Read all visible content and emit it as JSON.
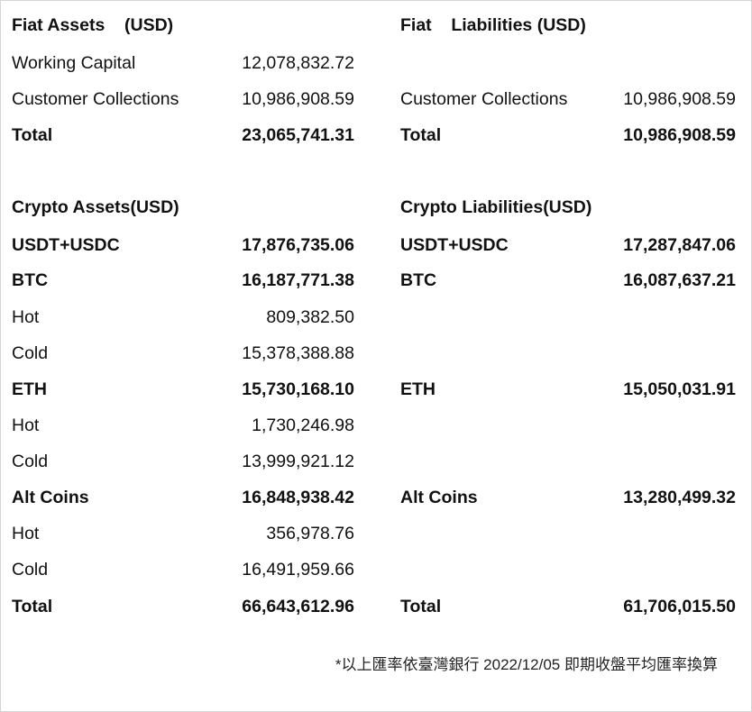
{
  "fiat_assets": {
    "title": "Fiat Assets    (USD)",
    "rows": [
      {
        "label": "Working Capital",
        "value": "12,078,832.72"
      },
      {
        "label": "Customer Collections",
        "value": "10,986,908.59"
      }
    ],
    "total": {
      "label": "Total",
      "value": "23,065,741.31"
    }
  },
  "fiat_liabilities": {
    "title": "Fiat    Liabilities (USD)",
    "rows": [
      {
        "label": "Customer Collections",
        "value": "10,986,908.59"
      }
    ],
    "total": {
      "label": "Total",
      "value": "10,986,908.59"
    }
  },
  "crypto_assets": {
    "title": "Crypto Assets(USD)",
    "rows": [
      {
        "label": "USDT+USDC",
        "value": "17,876,735.06"
      },
      {
        "label": "BTC",
        "value": "16,187,771.38"
      },
      {
        "label": "Hot",
        "value": "809,382.50"
      },
      {
        "label": "Cold",
        "value": "15,378,388.88"
      },
      {
        "label": "ETH",
        "value": "15,730,168.10"
      },
      {
        "label": "Hot",
        "value": "1,730,246.98"
      },
      {
        "label": "Cold",
        "value": "13,999,921.12"
      },
      {
        "label": "Alt Coins",
        "value": "16,848,938.42"
      },
      {
        "label": "Hot",
        "value": "356,978.76"
      },
      {
        "label": "Cold",
        "value": "16,491,959.66"
      }
    ],
    "total": {
      "label": "Total",
      "value": "66,643,612.96"
    }
  },
  "crypto_liabilities": {
    "title": "Crypto Liabilities(USD)",
    "rows": [
      {
        "label": "USDT+USDC",
        "value": "17,287,847.06"
      },
      {
        "label": "BTC",
        "value": "16,087,637.21"
      },
      {
        "label": "ETH",
        "value": "15,050,031.91"
      },
      {
        "label": "Alt Coins",
        "value": "13,280,499.32"
      }
    ],
    "total": {
      "label": "Total",
      "value": "61,706,015.50"
    }
  },
  "footnote": "*以上匯率依臺灣銀行 2022/12/05 即期收盤平均匯率換算"
}
